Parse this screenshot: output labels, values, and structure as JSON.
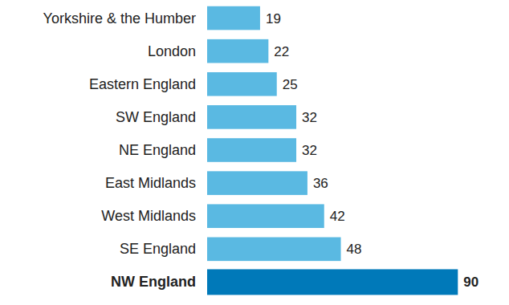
{
  "chart_data": {
    "type": "bar",
    "orientation": "horizontal",
    "categories": [
      "Yorkshire & the Humber",
      "London",
      "Eastern England",
      "SW England",
      "NE England",
      "East Midlands",
      "West Midlands",
      "SE England",
      "NW England"
    ],
    "values": [
      19,
      22,
      25,
      32,
      32,
      36,
      42,
      48,
      90
    ],
    "colors": [
      "#5ab9e2",
      "#5ab9e2",
      "#5ab9e2",
      "#5ab9e2",
      "#5ab9e2",
      "#5ab9e2",
      "#5ab9e2",
      "#5ab9e2",
      "#0079b9"
    ],
    "xlim": [
      0,
      100
    ],
    "data_labels": true,
    "tick_labels": "y",
    "grid": false
  }
}
